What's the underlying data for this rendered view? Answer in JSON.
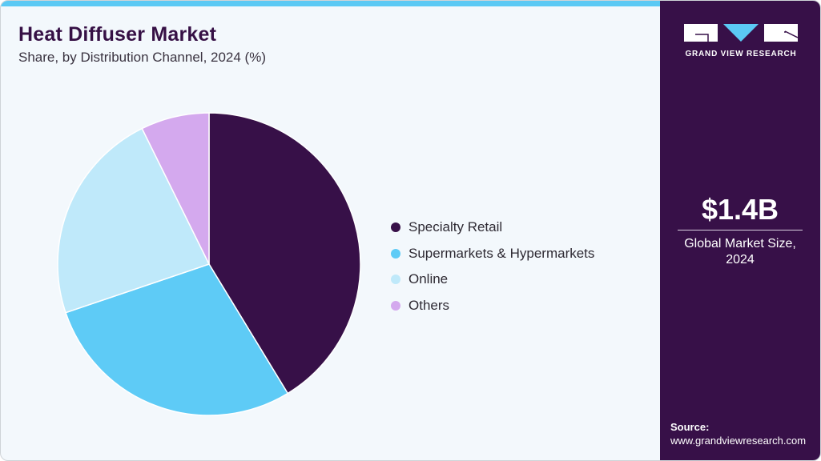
{
  "header": {
    "title": "Heat Diffuser Market",
    "subtitle": "Share, by Distribution Channel, 2024 (%)"
  },
  "legend": [
    {
      "label": "Specialty Retail",
      "color": "#371048"
    },
    {
      "label": "Supermarkets & Hypermarkets",
      "color": "#5ecbf6"
    },
    {
      "label": "Online",
      "color": "#bfe9fa"
    },
    {
      "label": "Others",
      "color": "#d4a9ee"
    }
  ],
  "sidebar": {
    "logo_text": "GRAND VIEW RESEARCH",
    "market_size": "$1.4B",
    "market_size_label_line1": "Global Market Size,",
    "market_size_label_line2": "2024",
    "source_title": "Source:",
    "source_url": "www.grandviewresearch.com"
  },
  "colors": {
    "brand_dark": "#371048",
    "accent_blue": "#5bc9f4",
    "background": "#f3f8fc"
  },
  "chart_data": {
    "type": "pie",
    "title": "Heat Diffuser Market",
    "subtitle": "Share, by Distribution Channel, 2024 (%)",
    "categories": [
      "Specialty Retail",
      "Supermarkets & Hypermarkets",
      "Online",
      "Others"
    ],
    "values": [
      41.3,
      28.5,
      22.9,
      7.3
    ],
    "colors": [
      "#371048",
      "#5ecbf6",
      "#bfe9fa",
      "#d4a9ee"
    ],
    "start_angle": "12 o'clock, clockwise",
    "legend_position": "right",
    "unit": "%"
  }
}
